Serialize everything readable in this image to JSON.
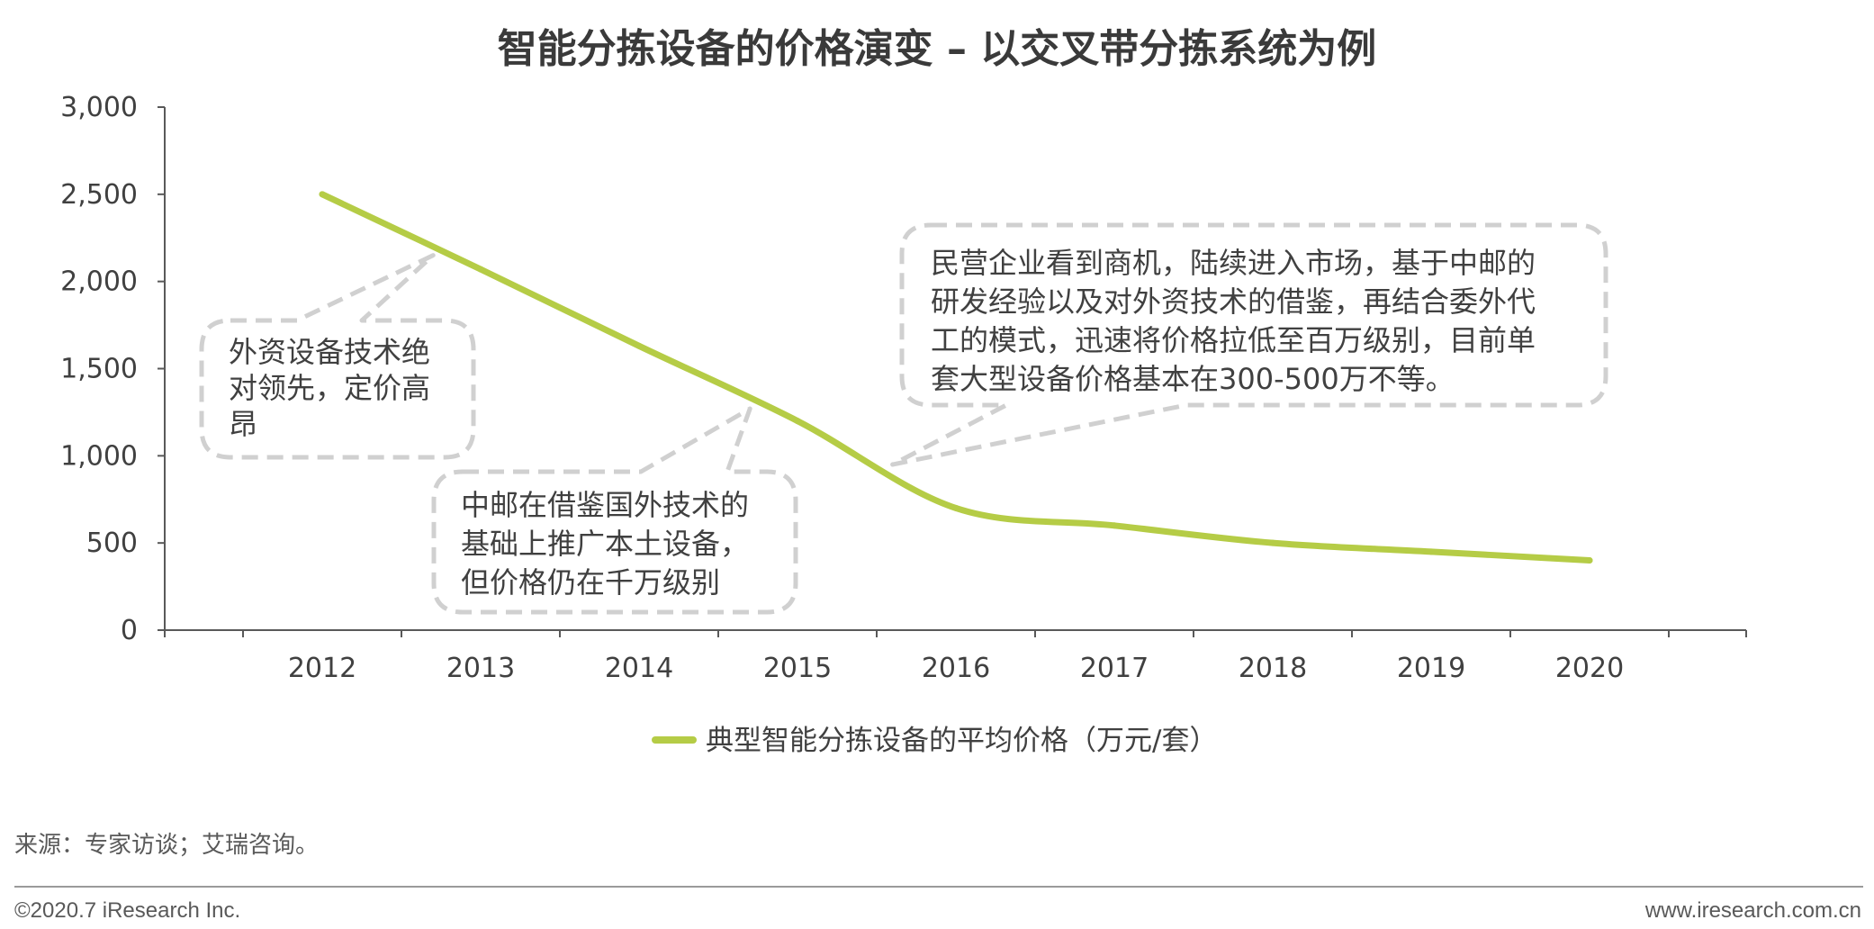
{
  "chart_data": {
    "type": "line",
    "title": "智能分拣设备的价格演变 – 以交叉带分拣系统为例",
    "x": [
      "2012",
      "2013",
      "2014",
      "2015",
      "2016",
      "2017",
      "2018",
      "2019",
      "2020"
    ],
    "series": [
      {
        "name": "典型智能分拣设备的平均价格（万元/套）",
        "values": [
          2500,
          2070,
          1630,
          1200,
          700,
          600,
          500,
          450,
          400
        ],
        "color": "#b5cc46"
      }
    ],
    "ylim": [
      0,
      3000
    ],
    "yticks": [
      "0",
      "500",
      "1,000",
      "1,500",
      "2,000",
      "2,500",
      "3,000"
    ],
    "ytick_values": [
      0,
      500,
      1000,
      1500,
      2000,
      2500,
      3000
    ],
    "grid": false,
    "legend_position": "bottom-center",
    "annotations": [
      {
        "id": "a1",
        "lines": [
          "外资设备技术绝",
          "对领先，定价高",
          "昂"
        ],
        "pointer_year": 2012.7,
        "pointer_value": 2150
      },
      {
        "id": "a2",
        "lines": [
          "中邮在借鉴国外技术的",
          "基础上推广本土设备，",
          "但价格仍在千万级别"
        ],
        "pointer_year": 2014.7,
        "pointer_value": 1270
      },
      {
        "id": "a3",
        "lines": [
          "民营企业看到商机，陆续进入市场，基于中邮的",
          "研发经验以及对外资技术的借鉴，再结合委外代",
          "工的模式，迅速将价格拉低至百万级别，目前单",
          "套大型设备价格基本在300-500万不等。"
        ],
        "pointer_year": 2015.6,
        "pointer_value": 950
      }
    ]
  },
  "source": "来源：专家访谈；艾瑞咨询。",
  "footer": {
    "copyright": "©2020.7 iResearch Inc.",
    "url": "www.iresearch.com.cn"
  },
  "colors": {
    "line": "#b5cc46",
    "callout_border": "#d0d0d0",
    "axis": "#595959"
  }
}
